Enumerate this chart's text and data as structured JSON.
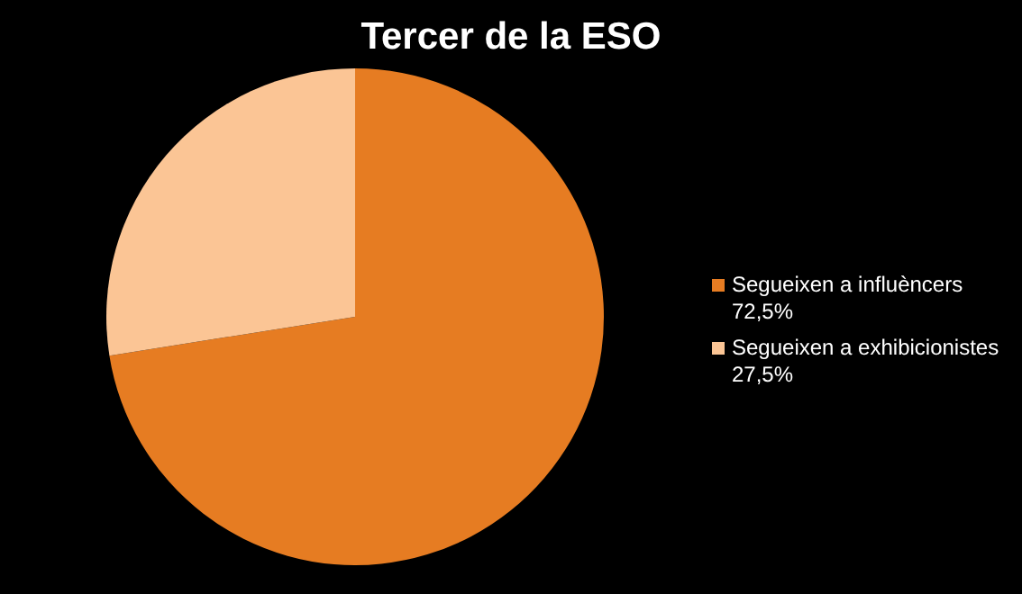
{
  "chart_data": {
    "type": "pie",
    "title": "Tercer de la ESO",
    "categories": [
      "Segueixen a influèncers",
      "Segueixen a exhibicionistes"
    ],
    "values": [
      72.5,
      27.5
    ],
    "colors": [
      "#e67c22",
      "#fbc595"
    ],
    "value_labels": [
      "72,5%",
      "27,5%"
    ],
    "legend": "right"
  }
}
